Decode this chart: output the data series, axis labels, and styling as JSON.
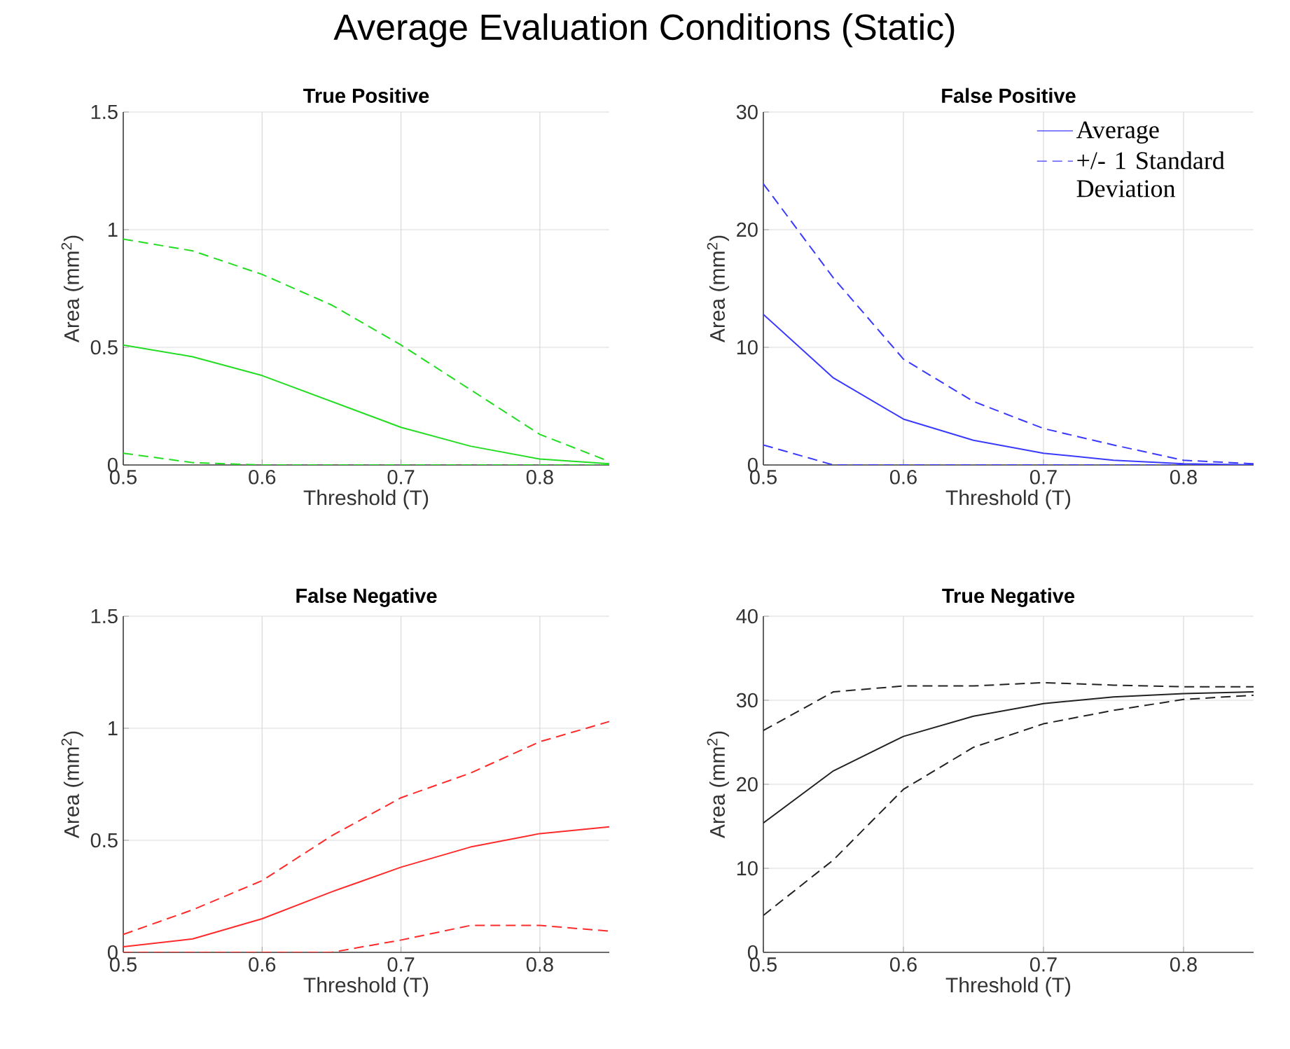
{
  "chart_data": [
    {
      "type": "other",
      "title": "Average Evaluation Conditions (Static)"
    },
    {
      "type": "line",
      "title": "True Positive",
      "xlabel": "Threshold (T)",
      "ylabel": "Area (mm$^{2}$)",
      "x": [
        0.5,
        0.55,
        0.6,
        0.65,
        0.7,
        0.75,
        0.8,
        0.85
      ],
      "xlim": [
        0.5,
        0.85
      ],
      "ylim": [
        0,
        1.5
      ],
      "xticks": [
        0.5,
        0.6,
        0.7,
        0.8
      ],
      "yticks": [
        0,
        0.5,
        1,
        1.5
      ],
      "grid": true,
      "series": [
        {
          "color": "#22dd22",
          "line_style": "solid",
          "values": [
            0.51,
            0.46,
            0.38,
            0.27,
            0.16,
            0.08,
            0.025,
            0.005
          ]
        },
        {
          "color": "#22dd22",
          "line_style": "dashed",
          "values": [
            0.96,
            0.91,
            0.81,
            0.68,
            0.51,
            0.32,
            0.13,
            0.015
          ]
        },
        {
          "color": "#22dd22",
          "line_style": "dashed",
          "values": [
            0.05,
            0.01,
            0,
            0,
            0,
            0,
            0,
            0
          ]
        }
      ]
    },
    {
      "type": "line",
      "title": "False Positive",
      "xlabel": "Threshold (T)",
      "ylabel": "Area (mm$^{2}$)",
      "x": [
        0.5,
        0.55,
        0.6,
        0.65,
        0.7,
        0.75,
        0.8,
        0.85
      ],
      "xlim": [
        0.5,
        0.85
      ],
      "ylim": [
        0,
        30
      ],
      "xticks": [
        0.5,
        0.6,
        0.7,
        0.8
      ],
      "yticks": [
        0,
        10,
        20,
        30
      ],
      "grid": true,
      "legend": "top right",
      "series": [
        {
          "name": "Average",
          "color": "#3a3aff",
          "line_style": "solid",
          "values": [
            12.8,
            7.4,
            3.9,
            2.1,
            1.0,
            0.4,
            0.1,
            0
          ]
        },
        {
          "name": "+/- 1 Standard Deviation",
          "color": "#3a3aff",
          "line_style": "dashed",
          "values": [
            23.9,
            15.9,
            9.0,
            5.4,
            3.1,
            1.7,
            0.4,
            0.1
          ]
        },
        {
          "color": "#3a3aff",
          "line_style": "dashed",
          "values": [
            1.7,
            0,
            0,
            0,
            0,
            0,
            0,
            0
          ]
        }
      ]
    },
    {
      "type": "line",
      "title": "False Negative",
      "xlabel": "Threshold (T)",
      "ylabel": "Area (mm$^{2}$)",
      "x": [
        0.5,
        0.55,
        0.6,
        0.65,
        0.7,
        0.75,
        0.8,
        0.85
      ],
      "xlim": [
        0.5,
        0.85
      ],
      "ylim": [
        0,
        1.5
      ],
      "xticks": [
        0.5,
        0.6,
        0.7,
        0.8
      ],
      "yticks": [
        0,
        0.5,
        1,
        1.5
      ],
      "grid": true,
      "series": [
        {
          "color": "#ff2a2a",
          "line_style": "solid",
          "values": [
            0.025,
            0.06,
            0.15,
            0.27,
            0.38,
            0.47,
            0.53,
            0.56
          ]
        },
        {
          "color": "#ff2a2a",
          "line_style": "dashed",
          "values": [
            0.08,
            0.19,
            0.32,
            0.52,
            0.69,
            0.8,
            0.94,
            1.03
          ]
        },
        {
          "color": "#ff2a2a",
          "line_style": "dashed",
          "values": [
            0,
            0,
            0,
            0,
            0.055,
            0.12,
            0.12,
            0.095
          ]
        }
      ]
    },
    {
      "type": "line",
      "title": "True Negative",
      "xlabel": "Threshold (T)",
      "ylabel": "Area (mm$^{2}$)",
      "x": [
        0.5,
        0.55,
        0.6,
        0.65,
        0.7,
        0.75,
        0.8,
        0.85
      ],
      "xlim": [
        0.5,
        0.85
      ],
      "ylim": [
        0,
        40
      ],
      "xticks": [
        0.5,
        0.6,
        0.7,
        0.8
      ],
      "yticks": [
        0,
        10,
        20,
        30,
        40
      ],
      "grid": true,
      "series": [
        {
          "color": "#222222",
          "line_style": "solid",
          "values": [
            15.4,
            21.6,
            25.7,
            28.1,
            29.6,
            30.4,
            30.8,
            31.0
          ]
        },
        {
          "color": "#222222",
          "line_style": "dashed",
          "values": [
            26.4,
            31.0,
            31.7,
            31.7,
            32.1,
            31.8,
            31.6,
            31.6
          ]
        },
        {
          "color": "#222222",
          "line_style": "dashed",
          "values": [
            4.4,
            11.0,
            19.4,
            24.4,
            27.2,
            28.8,
            30.1,
            30.6
          ]
        }
      ]
    }
  ]
}
